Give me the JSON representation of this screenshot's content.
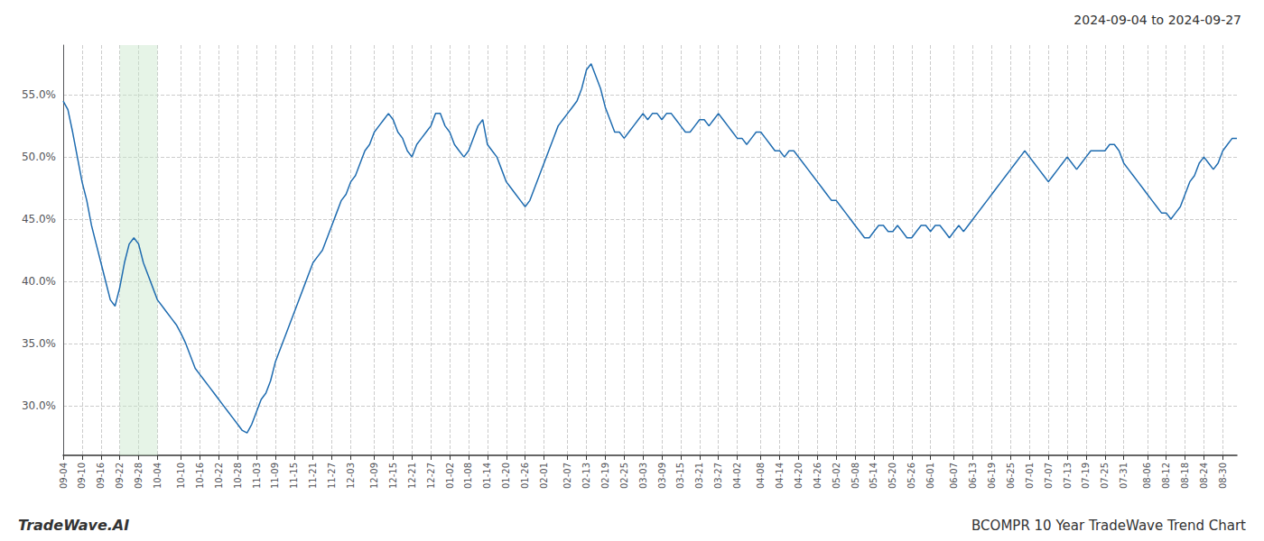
{
  "chart_data": {
    "type": "line",
    "title": "2024-09-04 to 2024-09-27",
    "annotations": [
      "TradeWave.AI",
      "BCOMPR 10 Year TradeWave Trend Chart"
    ],
    "color": "#1f6cb0",
    "grid": true,
    "highlight": {
      "start": "09-22",
      "end": "10-04",
      "color": "#c8e6c9"
    },
    "ylim": [
      26,
      59
    ],
    "yticks": [
      {
        "value": 30.0,
        "label": "30.0%"
      },
      {
        "value": 35.0,
        "label": "35.0%"
      },
      {
        "value": 40.0,
        "label": "40.0%"
      },
      {
        "value": 45.0,
        "label": "45.0%"
      },
      {
        "value": 50.0,
        "label": "50.0%"
      },
      {
        "value": 55.0,
        "label": "55.0%"
      }
    ],
    "categories": [
      "09-04",
      null,
      null,
      null,
      "09-10",
      null,
      null,
      null,
      "09-16",
      null,
      null,
      null,
      "09-22",
      null,
      null,
      null,
      "09-28",
      null,
      null,
      null,
      "10-04",
      null,
      null,
      null,
      null,
      "10-10",
      null,
      null,
      null,
      "10-16",
      null,
      null,
      null,
      "10-22",
      null,
      null,
      null,
      "10-28",
      null,
      null,
      null,
      "11-03",
      null,
      null,
      null,
      "11-09",
      null,
      null,
      null,
      "11-15",
      null,
      null,
      null,
      "11-21",
      null,
      null,
      null,
      "11-27",
      null,
      null,
      null,
      "12-03",
      null,
      null,
      null,
      null,
      "12-09",
      null,
      null,
      null,
      "12-15",
      null,
      null,
      null,
      "12-21",
      null,
      null,
      null,
      "12-27",
      null,
      null,
      null,
      "01-02",
      null,
      null,
      null,
      "01-08",
      null,
      null,
      null,
      "01-14",
      null,
      null,
      null,
      "01-20",
      null,
      null,
      null,
      "01-26",
      null,
      null,
      null,
      "02-01",
      null,
      null,
      null,
      null,
      "02-07",
      null,
      null,
      null,
      "02-13",
      null,
      null,
      null,
      "02-19",
      null,
      null,
      null,
      "02-25",
      null,
      null,
      null,
      "03-03",
      null,
      null,
      null,
      "03-09",
      null,
      null,
      null,
      "03-15",
      null,
      null,
      null,
      "03-21",
      null,
      null,
      null,
      "03-27",
      null,
      null,
      null,
      "04-02",
      null,
      null,
      null,
      null,
      "04-08",
      null,
      null,
      null,
      "04-14",
      null,
      null,
      null,
      "04-20",
      null,
      null,
      null,
      "04-26",
      null,
      null,
      null,
      "05-02",
      null,
      null,
      null,
      "05-08",
      null,
      null,
      null,
      "05-14",
      null,
      null,
      null,
      "05-20",
      null,
      null,
      null,
      "05-26",
      null,
      null,
      null,
      "06-01",
      null,
      null,
      null,
      null,
      "06-07",
      null,
      null,
      null,
      "06-13",
      null,
      null,
      null,
      "06-19",
      null,
      null,
      null,
      "06-25",
      null,
      null,
      null,
      "07-01",
      null,
      null,
      null,
      "07-07",
      null,
      null,
      null,
      "07-13",
      null,
      null,
      null,
      "07-19",
      null,
      null,
      null,
      "07-25",
      null,
      null,
      null,
      "07-31",
      null,
      null,
      null,
      null,
      "08-06",
      null,
      null,
      null,
      "08-12",
      null,
      null,
      null,
      "08-18",
      null,
      null,
      null,
      "08-24",
      null,
      null,
      null,
      "08-30",
      null,
      null,
      null
    ],
    "values": [
      54.5,
      53.8,
      52.0,
      50.0,
      48.0,
      46.5,
      44.5,
      43.0,
      41.5,
      40.0,
      38.5,
      38.0,
      39.5,
      41.5,
      43.0,
      43.5,
      43.0,
      41.5,
      40.5,
      39.5,
      38.5,
      38.0,
      37.5,
      37.0,
      36.5,
      35.8,
      35.0,
      34.0,
      33.0,
      32.5,
      32.0,
      31.5,
      31.0,
      30.5,
      30.0,
      29.5,
      29.0,
      28.5,
      28.0,
      27.8,
      28.5,
      29.5,
      30.5,
      31.0,
      32.0,
      33.5,
      34.5,
      35.5,
      36.5,
      37.5,
      38.5,
      39.5,
      40.5,
      41.5,
      42.0,
      42.5,
      43.5,
      44.5,
      45.5,
      46.5,
      47.0,
      48.0,
      48.5,
      49.5,
      50.5,
      51.0,
      52.0,
      52.5,
      53.0,
      53.5,
      53.0,
      52.0,
      51.5,
      50.5,
      50.0,
      51.0,
      51.5,
      52.0,
      52.5,
      53.5,
      53.5,
      52.5,
      52.0,
      51.0,
      50.5,
      50.0,
      50.5,
      51.5,
      52.5,
      53.0,
      51.0,
      50.5,
      50.0,
      49.0,
      48.0,
      47.5,
      47.0,
      46.5,
      46.0,
      46.5,
      47.5,
      48.5,
      49.5,
      50.5,
      51.5,
      52.5,
      53.0,
      53.5,
      54.0,
      54.5,
      55.5,
      57.0,
      57.5,
      56.5,
      55.5,
      54.0,
      53.0,
      52.0,
      52.0,
      51.5,
      52.0,
      52.5,
      53.0,
      53.5,
      53.0,
      53.5,
      53.5,
      53.0,
      53.5,
      53.5,
      53.0,
      52.5,
      52.0,
      52.0,
      52.5,
      53.0,
      53.0,
      52.5,
      53.0,
      53.5,
      53.0,
      52.5,
      52.0,
      51.5,
      51.5,
      51.0,
      51.5,
      52.0,
      52.0,
      51.5,
      51.0,
      50.5,
      50.5,
      50.0,
      50.5,
      50.5,
      50.0,
      49.5,
      49.0,
      48.5,
      48.0,
      47.5,
      47.0,
      46.5,
      46.5,
      46.0,
      45.5,
      45.0,
      44.5,
      44.0,
      43.5,
      43.5,
      44.0,
      44.5,
      44.5,
      44.0,
      44.0,
      44.5,
      44.0,
      43.5,
      43.5,
      44.0,
      44.5,
      44.5,
      44.0,
      44.5,
      44.5,
      44.0,
      43.5,
      44.0,
      44.5,
      44.0,
      44.5,
      45.0,
      45.5,
      46.0,
      46.5,
      47.0,
      47.5,
      48.0,
      48.5,
      49.0,
      49.5,
      50.0,
      50.5,
      50.0,
      49.5,
      49.0,
      48.5,
      48.0,
      48.5,
      49.0,
      49.5,
      50.0,
      49.5,
      49.0,
      49.5,
      50.0,
      50.5,
      50.5,
      50.5,
      50.5,
      51.0,
      51.0,
      50.5,
      49.5,
      49.0,
      48.5,
      48.0,
      47.5,
      47.0,
      46.5,
      46.0,
      45.5,
      45.5,
      45.0,
      45.5,
      46.0,
      47.0,
      48.0,
      48.5,
      49.5,
      50.0,
      49.5,
      49.0,
      49.5,
      50.5,
      51.0,
      51.5,
      51.5
    ]
  }
}
